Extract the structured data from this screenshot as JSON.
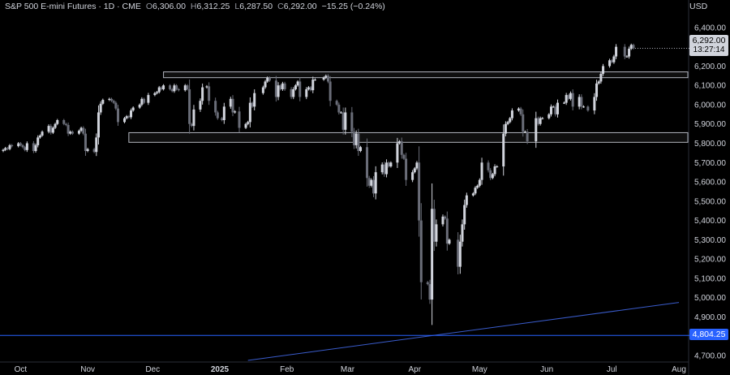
{
  "legend": {
    "symbol": "S&P 500 E-mini Futures · 1D · CME",
    "open_label": "O",
    "open": "6,306.00",
    "high_label": "H",
    "high": "6,312.25",
    "low_label": "L",
    "low": "6,287.50",
    "close_label": "C",
    "close": "6,292.00",
    "change": "−15.25 (−0.24%)"
  },
  "currency": "USD",
  "last_price": {
    "value": "6,292.00",
    "countdown": "13:27:14"
  },
  "horizontal_level": {
    "value": "4,804.25",
    "price": 4804.25,
    "color": "#2962ff"
  },
  "colors": {
    "up": "#d1d4dc",
    "down": "#6a6d78",
    "zone_border": "#b2b5be",
    "trendline": "#3a5ccc",
    "axis_text": "#d1d4dc"
  },
  "chart_data": {
    "type": "candlestick",
    "title": "S&P 500 E-mini Futures · 1D · CME",
    "ylim": [
      4700,
      6450
    ],
    "y_ticks": [
      4700,
      4800,
      4900,
      5000,
      5100,
      5200,
      5300,
      5400,
      5500,
      5600,
      5700,
      5800,
      5900,
      6000,
      6100,
      6200,
      6300,
      6400
    ],
    "y_tick_labels": [
      "4,700.00",
      "4,800.00",
      "4,900.00",
      "5,000.00",
      "5,100.00",
      "5,200.00",
      "5,300.00",
      "5,400.00",
      "5,500.00",
      "5,600.00",
      "5,700.00",
      "5,800.00",
      "5,900.00",
      "6,000.00",
      "6,100.00",
      "6,200.00",
      "6,300.00",
      "6,400.00"
    ],
    "x_labels": [
      "Oct",
      "Nov",
      "Dec",
      "2025",
      "Feb",
      "Mar",
      "Apr",
      "May",
      "Jun",
      "Jul",
      "Aug"
    ],
    "x_label_dates": [
      "2024-10-01",
      "2024-11-01",
      "2024-12-01",
      "2025-01-01",
      "2025-02-01",
      "2025-03-01",
      "2025-04-01",
      "2025-05-01",
      "2025-06-01",
      "2025-07-01",
      "2025-08-01"
    ],
    "xlim": [
      "2024-09-23",
      "2025-08-01"
    ],
    "zones": [
      {
        "from": "2024-12-06",
        "to": "2025-08-01",
        "low": 6140,
        "high": 6170
      },
      {
        "from": "2024-11-20",
        "to": "2025-08-01",
        "low": 5805,
        "high": 5855
      }
    ],
    "trendline": {
      "from_date": "2025-01-14",
      "from_price": 4675,
      "to_date": "2025-08-01",
      "to_price": 4975
    },
    "closes": [
      [
        "2024-09-23",
        5766
      ],
      [
        "2024-09-24",
        5775
      ],
      [
        "2024-09-25",
        5770
      ],
      [
        "2024-09-26",
        5790
      ],
      [
        "2024-09-27",
        5785
      ],
      [
        "2024-09-30",
        5800
      ],
      [
        "2024-10-01",
        5790
      ],
      [
        "2024-10-02",
        5780
      ],
      [
        "2024-10-03",
        5765
      ],
      [
        "2024-10-04",
        5800
      ],
      [
        "2024-10-07",
        5760
      ],
      [
        "2024-10-08",
        5790
      ],
      [
        "2024-10-09",
        5830
      ],
      [
        "2024-10-10",
        5840
      ],
      [
        "2024-10-11",
        5860
      ],
      [
        "2024-10-14",
        5890
      ],
      [
        "2024-10-15",
        5855
      ],
      [
        "2024-10-16",
        5880
      ],
      [
        "2024-10-17",
        5900
      ],
      [
        "2024-10-18",
        5920
      ],
      [
        "2024-10-21",
        5900
      ],
      [
        "2024-10-22",
        5895
      ],
      [
        "2024-10-23",
        5850
      ],
      [
        "2024-10-24",
        5860
      ],
      [
        "2024-10-25",
        5850
      ],
      [
        "2024-10-28",
        5865
      ],
      [
        "2024-10-29",
        5880
      ],
      [
        "2024-10-30",
        5850
      ],
      [
        "2024-10-31",
        5760
      ],
      [
        "2024-11-01",
        5770
      ],
      [
        "2024-11-04",
        5755
      ],
      [
        "2024-11-05",
        5830
      ],
      [
        "2024-11-06",
        5960
      ],
      [
        "2024-11-07",
        6005
      ],
      [
        "2024-11-08",
        6025
      ],
      [
        "2024-11-11",
        6030
      ],
      [
        "2024-11-12",
        6020
      ],
      [
        "2024-11-13",
        6010
      ],
      [
        "2024-11-14",
        5980
      ],
      [
        "2024-11-15",
        5910
      ],
      [
        "2024-11-18",
        5930
      ],
      [
        "2024-11-19",
        5940
      ],
      [
        "2024-11-20",
        5935
      ],
      [
        "2024-11-21",
        5970
      ],
      [
        "2024-11-22",
        5985
      ],
      [
        "2024-11-25",
        6000
      ],
      [
        "2024-11-26",
        6030
      ],
      [
        "2024-11-27",
        6010
      ],
      [
        "2024-11-29",
        6050
      ],
      [
        "2024-12-02",
        6060
      ],
      [
        "2024-12-03",
        6065
      ],
      [
        "2024-12-04",
        6090
      ],
      [
        "2024-12-05",
        6080
      ],
      [
        "2024-12-06",
        6100
      ],
      [
        "2024-12-09",
        6080
      ],
      [
        "2024-12-10",
        6070
      ],
      [
        "2024-12-11",
        6100
      ],
      [
        "2024-12-12",
        6080
      ],
      [
        "2024-12-13",
        6075
      ],
      [
        "2024-12-16",
        6100
      ],
      [
        "2024-12-17",
        6080
      ],
      [
        "2024-12-18",
        5900
      ],
      [
        "2024-12-19",
        5890
      ],
      [
        "2024-12-20",
        5975
      ],
      [
        "2024-12-23",
        6020
      ],
      [
        "2024-12-24",
        6090
      ],
      [
        "2024-12-26",
        6095
      ],
      [
        "2024-12-27",
        6020
      ],
      [
        "2024-12-30",
        5960
      ],
      [
        "2024-12-31",
        5930
      ],
      [
        "2025-01-02",
        5920
      ],
      [
        "2025-01-03",
        5990
      ],
      [
        "2025-01-06",
        6030
      ],
      [
        "2025-01-07",
        5960
      ],
      [
        "2025-01-08",
        5965
      ],
      [
        "2025-01-10",
        5880
      ],
      [
        "2025-01-13",
        5900
      ],
      [
        "2025-01-14",
        5910
      ],
      [
        "2025-01-15",
        6010
      ],
      [
        "2025-01-16",
        5990
      ],
      [
        "2025-01-17",
        6060
      ],
      [
        "2025-01-21",
        6090
      ],
      [
        "2025-01-22",
        6120
      ],
      [
        "2025-01-23",
        6140
      ],
      [
        "2025-01-24",
        6125
      ],
      [
        "2025-01-27",
        6040
      ],
      [
        "2025-01-28",
        6100
      ],
      [
        "2025-01-29",
        6080
      ],
      [
        "2025-01-30",
        6110
      ],
      [
        "2025-01-31",
        6080
      ],
      [
        "2025-02-03",
        6040
      ],
      [
        "2025-02-04",
        6080
      ],
      [
        "2025-02-05",
        6100
      ],
      [
        "2025-02-06",
        6120
      ],
      [
        "2025-02-07",
        6040
      ],
      [
        "2025-02-10",
        6080
      ],
      [
        "2025-02-11",
        6090
      ],
      [
        "2025-02-12",
        6075
      ],
      [
        "2025-02-13",
        6130
      ],
      [
        "2025-02-14",
        6130
      ],
      [
        "2025-02-18",
        6140
      ],
      [
        "2025-02-19",
        6150
      ],
      [
        "2025-02-20",
        6120
      ],
      [
        "2025-02-21",
        6020
      ],
      [
        "2025-02-24",
        6000
      ],
      [
        "2025-02-25",
        5960
      ],
      [
        "2025-02-26",
        5960
      ],
      [
        "2025-02-27",
        5870
      ],
      [
        "2025-02-28",
        5960
      ],
      [
        "2025-03-03",
        5860
      ],
      [
        "2025-03-04",
        5790
      ],
      [
        "2025-03-05",
        5850
      ],
      [
        "2025-03-06",
        5760
      ],
      [
        "2025-03-07",
        5780
      ],
      [
        "2025-03-10",
        5620
      ],
      [
        "2025-03-11",
        5580
      ],
      [
        "2025-03-12",
        5610
      ],
      [
        "2025-03-13",
        5540
      ],
      [
        "2025-03-14",
        5650
      ],
      [
        "2025-03-17",
        5690
      ],
      [
        "2025-03-18",
        5640
      ],
      [
        "2025-03-19",
        5700
      ],
      [
        "2025-03-20",
        5680
      ],
      [
        "2025-03-21",
        5700
      ],
      [
        "2025-03-24",
        5800
      ],
      [
        "2025-03-25",
        5810
      ],
      [
        "2025-03-26",
        5740
      ],
      [
        "2025-03-27",
        5720
      ],
      [
        "2025-03-28",
        5610
      ],
      [
        "2025-03-31",
        5650
      ],
      [
        "2025-04-01",
        5670
      ],
      [
        "2025-04-02",
        5700
      ],
      [
        "2025-04-03",
        5400
      ],
      [
        "2025-04-04",
        5080
      ],
      [
        "2025-04-07",
        5070
      ],
      [
        "2025-04-08",
        4990
      ],
      [
        "2025-04-09",
        5460
      ],
      [
        "2025-04-10",
        5290
      ],
      [
        "2025-04-11",
        5380
      ],
      [
        "2025-04-14",
        5420
      ],
      [
        "2025-04-15",
        5410
      ],
      [
        "2025-04-16",
        5280
      ],
      [
        "2025-04-17",
        5300
      ],
      [
        "2025-04-21",
        5160
      ],
      [
        "2025-04-22",
        5290
      ],
      [
        "2025-04-23",
        5380
      ],
      [
        "2025-04-24",
        5480
      ],
      [
        "2025-04-25",
        5530
      ],
      [
        "2025-04-28",
        5540
      ],
      [
        "2025-04-29",
        5570
      ],
      [
        "2025-04-30",
        5580
      ],
      [
        "2025-05-01",
        5610
      ],
      [
        "2025-05-02",
        5700
      ],
      [
        "2025-05-05",
        5660
      ],
      [
        "2025-05-06",
        5620
      ],
      [
        "2025-05-07",
        5640
      ],
      [
        "2025-05-08",
        5680
      ],
      [
        "2025-05-09",
        5680
      ],
      [
        "2025-05-12",
        5850
      ],
      [
        "2025-05-13",
        5900
      ],
      [
        "2025-05-14",
        5910
      ],
      [
        "2025-05-15",
        5930
      ],
      [
        "2025-05-16",
        5970
      ],
      [
        "2025-05-19",
        5980
      ],
      [
        "2025-05-20",
        5950
      ],
      [
        "2025-05-21",
        5860
      ],
      [
        "2025-05-22",
        5860
      ],
      [
        "2025-05-23",
        5810
      ],
      [
        "2025-05-27",
        5930
      ],
      [
        "2025-05-28",
        5900
      ],
      [
        "2025-05-29",
        5930
      ],
      [
        "2025-05-30",
        5930
      ],
      [
        "2025-06-02",
        5950
      ],
      [
        "2025-06-03",
        5990
      ],
      [
        "2025-06-04",
        5990
      ],
      [
        "2025-06-05",
        5950
      ],
      [
        "2025-06-06",
        6010
      ],
      [
        "2025-06-09",
        6010
      ],
      [
        "2025-06-10",
        6050
      ],
      [
        "2025-06-11",
        6030
      ],
      [
        "2025-06-12",
        6060
      ],
      [
        "2025-06-13",
        5990
      ],
      [
        "2025-06-16",
        6040
      ],
      [
        "2025-06-17",
        5990
      ],
      [
        "2025-06-18",
        5990
      ],
      [
        "2025-06-20",
        5970
      ],
      [
        "2025-06-23",
        6040
      ],
      [
        "2025-06-24",
        6110
      ],
      [
        "2025-06-25",
        6120
      ],
      [
        "2025-06-26",
        6160
      ],
      [
        "2025-06-27",
        6200
      ],
      [
        "2025-06-30",
        6230
      ],
      [
        "2025-07-01",
        6220
      ],
      [
        "2025-07-02",
        6250
      ],
      [
        "2025-07-03",
        6300
      ],
      [
        "2025-07-07",
        6250
      ],
      [
        "2025-07-08",
        6250
      ],
      [
        "2025-07-09",
        6290
      ],
      [
        "2025-07-10",
        6310
      ],
      [
        "2025-07-11",
        6292
      ]
    ]
  }
}
